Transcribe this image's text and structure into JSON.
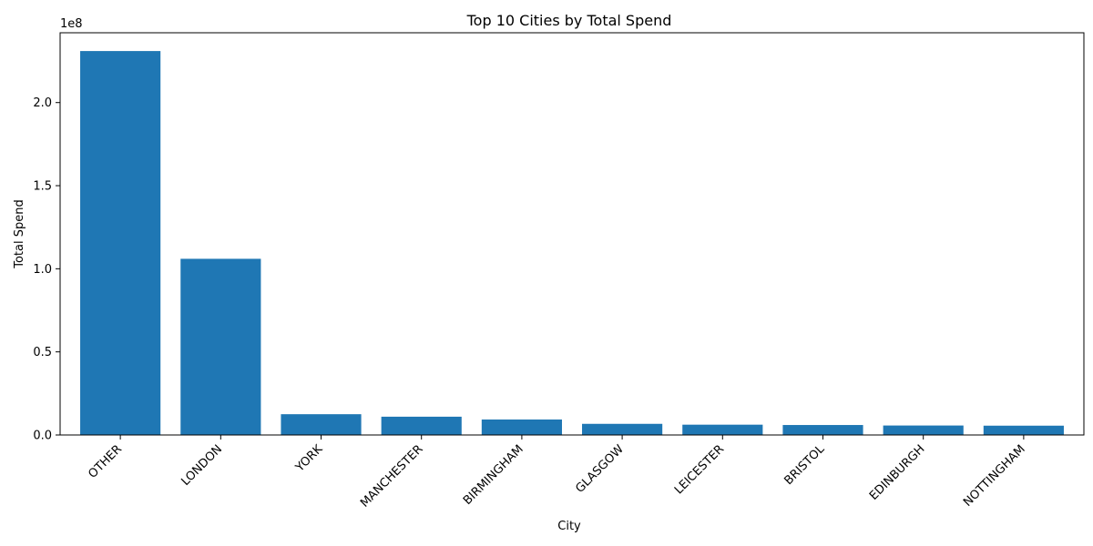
{
  "chart_data": {
    "type": "bar",
    "title": "Top 10 Cities by Total Spend",
    "xlabel": "City",
    "ylabel": "Total Spend",
    "offset_text": "1e8",
    "categories": [
      "OTHER",
      "LONDON",
      "YORK",
      "MANCHESTER",
      "BIRMINGHAM",
      "GLASGOW",
      "LEICESTER",
      "BRISTOL",
      "EDINBURGH",
      "NOTTINGHAM"
    ],
    "values": [
      231000000,
      106000000,
      12500000,
      11000000,
      9300000,
      6700000,
      6200000,
      6000000,
      5700000,
      5600000
    ],
    "ylim": [
      0,
      242000000
    ],
    "yticks": [
      0,
      50000000,
      100000000,
      150000000,
      200000000
    ],
    "ytick_labels": [
      "0.0",
      "0.5",
      "1.0",
      "1.5",
      "2.0"
    ],
    "grid": false,
    "bar_color": "#1f77b4"
  }
}
